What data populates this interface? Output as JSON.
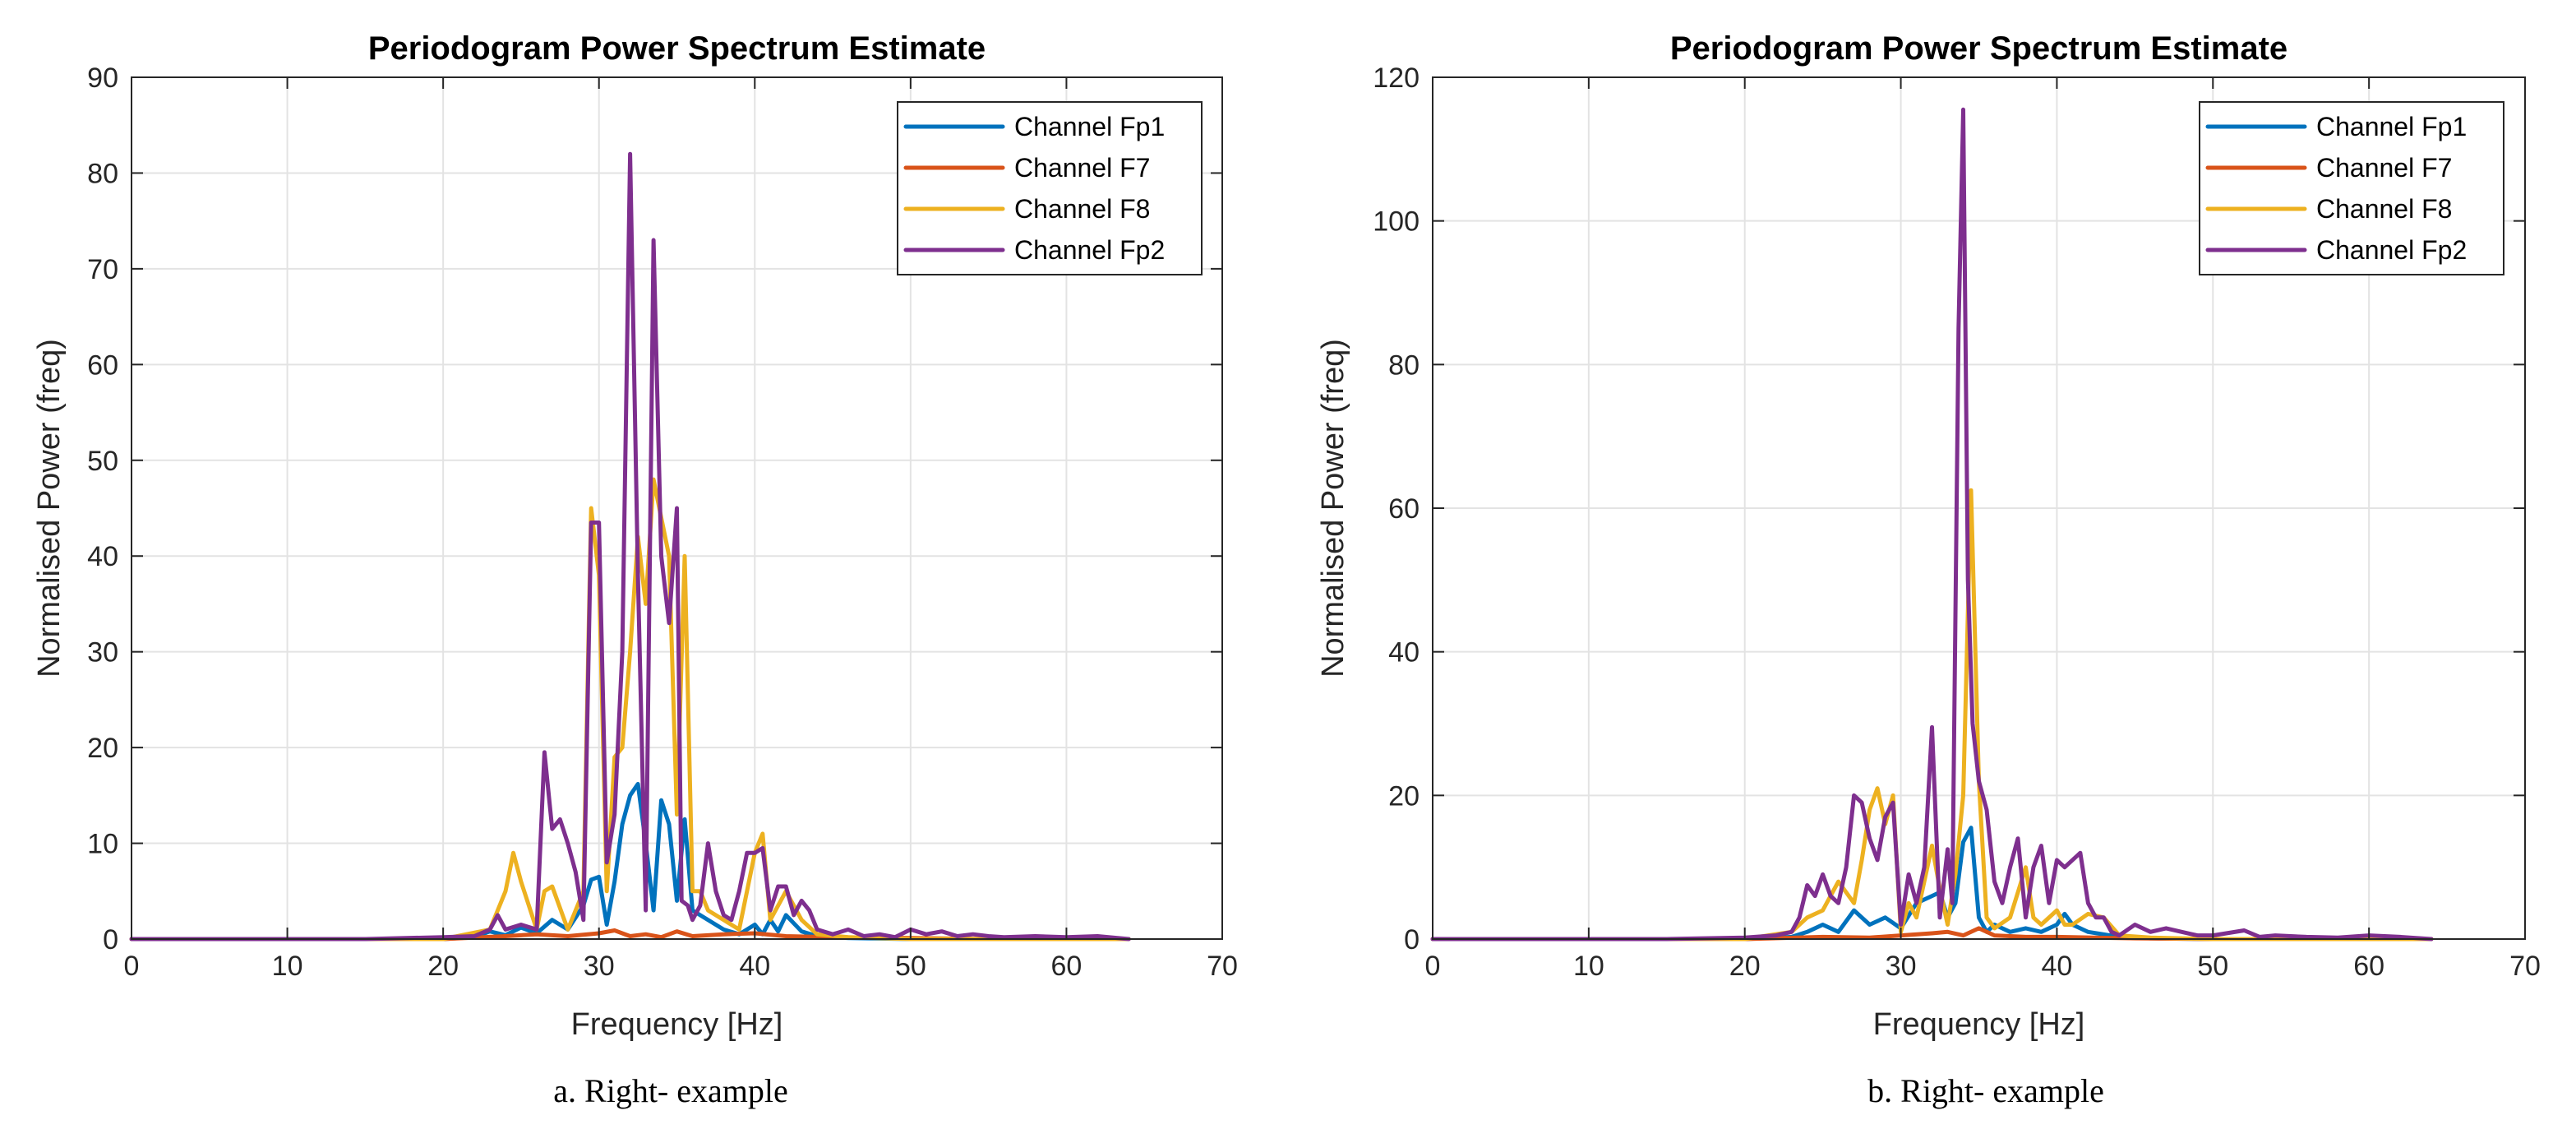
{
  "chart_data": [
    {
      "type": "line",
      "title": "Periodogram Power Spectrum Estimate",
      "xlabel": "Frequency [Hz]",
      "ylabel": "Normalised Power (freq)",
      "xlim": [
        0,
        70
      ],
      "ylim": [
        0,
        90
      ],
      "xticks": [
        0,
        10,
        20,
        30,
        40,
        50,
        60,
        70
      ],
      "yticks": [
        0,
        10,
        20,
        30,
        40,
        50,
        60,
        70,
        80,
        90
      ],
      "grid": true,
      "legend_position": "top-right",
      "caption": "a. Right- example",
      "series": [
        {
          "name": "Channel Fp1",
          "color": "#0072BD",
          "x": [
            0,
            5,
            10,
            15,
            20,
            22,
            23,
            24,
            25,
            26,
            27,
            28,
            29,
            29.5,
            30,
            30.5,
            31,
            31.5,
            32,
            32.5,
            33,
            33.5,
            34,
            34.5,
            35,
            35.5,
            36,
            37,
            38,
            39,
            40,
            40.5,
            41,
            41.5,
            42,
            43,
            44,
            46,
            50,
            55,
            60,
            64
          ],
          "y": [
            0,
            0,
            0,
            0,
            0,
            0.2,
            0.8,
            0.4,
            1.2,
            0.6,
            2,
            1,
            3.5,
            6.2,
            6.5,
            1.5,
            6,
            12,
            15,
            16.2,
            10,
            3,
            14.5,
            12,
            4,
            12.5,
            3,
            2,
            1,
            0.5,
            1.5,
            0.5,
            2,
            0.8,
            2.5,
            0.8,
            0.3,
            0.1,
            0,
            0,
            0,
            0
          ]
        },
        {
          "name": "Channel F7",
          "color": "#D95319",
          "x": [
            0,
            10,
            20,
            24,
            26,
            28,
            30,
            31,
            32,
            33,
            34,
            35,
            36,
            38,
            40,
            42,
            45,
            50,
            55,
            60,
            64
          ],
          "y": [
            0,
            0,
            0,
            0.3,
            0.5,
            0.3,
            0.6,
            0.9,
            0.3,
            0.5,
            0.2,
            0.8,
            0.3,
            0.5,
            0.6,
            0.3,
            0.2,
            0.1,
            0,
            0,
            0
          ]
        },
        {
          "name": "Channel F8",
          "color": "#EDB120",
          "x": [
            0,
            10,
            20,
            23,
            24,
            24.5,
            25,
            26,
            26.5,
            27,
            28,
            29,
            29.5,
            30,
            30.5,
            31,
            31.5,
            32,
            32.5,
            33,
            33.5,
            34,
            34.5,
            35,
            35.5,
            36,
            36.5,
            37,
            38,
            39,
            40,
            40.5,
            41,
            42,
            43,
            44,
            46,
            50,
            55,
            60,
            64
          ],
          "y": [
            0,
            0,
            0,
            1,
            5,
            9,
            6,
            1,
            5,
            5.5,
            1,
            5,
            45,
            38,
            5,
            19,
            20,
            30,
            42,
            35,
            48,
            44,
            40,
            13,
            40,
            5,
            5,
            3,
            2,
            1,
            9,
            11,
            2,
            5,
            2,
            0.5,
            0.2,
            0,
            0,
            0,
            0
          ]
        },
        {
          "name": "Channel Fp2",
          "color": "#7E2F8E",
          "x": [
            0,
            5,
            10,
            15,
            20,
            22,
            23,
            23.5,
            24,
            25,
            26,
            26.5,
            27,
            27.5,
            28,
            28.5,
            29,
            29.5,
            30,
            30.5,
            31,
            31.5,
            32,
            32.5,
            33,
            33.5,
            34,
            34.5,
            35,
            35.3,
            35.7,
            36,
            36.5,
            37,
            37.5,
            38,
            38.5,
            39,
            39.5,
            40,
            40.5,
            41,
            41.5,
            42,
            42.5,
            43,
            43.5,
            44,
            45,
            46,
            47,
            48,
            49,
            50,
            51,
            52,
            53,
            54,
            55,
            56,
            58,
            60,
            62,
            64
          ],
          "y": [
            0,
            0,
            0,
            0,
            0.2,
            0.3,
            1,
            2.5,
            1,
            1.5,
            1,
            19.5,
            11.5,
            12.5,
            10,
            7,
            2,
            43.5,
            43.5,
            8,
            13,
            30,
            82,
            38,
            3,
            73,
            40,
            33,
            45,
            4,
            3.5,
            2,
            3.5,
            10,
            5,
            2.5,
            2,
            5,
            9,
            9,
            9.5,
            3,
            5.5,
            5.5,
            2.5,
            4,
            3,
            1,
            0.5,
            1,
            0.3,
            0.5,
            0.2,
            1,
            0.5,
            0.8,
            0.3,
            0.5,
            0.3,
            0.2,
            0.3,
            0.2,
            0.3,
            0
          ]
        }
      ]
    },
    {
      "type": "line",
      "title": "Periodogram Power Spectrum Estimate",
      "xlabel": "Frequency [Hz]",
      "ylabel": "Normalised Power (freq)",
      "xlim": [
        0,
        70
      ],
      "ylim": [
        0,
        120
      ],
      "xticks": [
        0,
        10,
        20,
        30,
        40,
        50,
        60,
        70
      ],
      "yticks": [
        0,
        20,
        40,
        60,
        80,
        100,
        120
      ],
      "grid": true,
      "legend_position": "top-right",
      "caption": "b. Right- example",
      "series": [
        {
          "name": "Channel Fp1",
          "color": "#0072BD",
          "x": [
            0,
            10,
            20,
            23,
            24,
            25,
            26,
            27,
            28,
            29,
            30,
            31,
            32,
            32.5,
            33,
            33.5,
            34,
            34.5,
            35,
            35.5,
            36,
            37,
            38,
            39,
            40,
            40.5,
            41,
            42,
            44,
            46,
            50,
            55,
            60,
            64
          ],
          "y": [
            0,
            0,
            0,
            0.3,
            1,
            2,
            1,
            4,
            2,
            3,
            1.5,
            5,
            6,
            6.5,
            3,
            5,
            13.5,
            15.5,
            3,
            1,
            2,
            1,
            1.5,
            1,
            2,
            3.5,
            2,
            1,
            0.3,
            0.1,
            0,
            0,
            0,
            0
          ]
        },
        {
          "name": "Channel F7",
          "color": "#D95319",
          "x": [
            0,
            10,
            20,
            25,
            28,
            30,
            32,
            33,
            34,
            35,
            36,
            38,
            40,
            45,
            50,
            55,
            60,
            64
          ],
          "y": [
            0,
            0,
            0,
            0.3,
            0.2,
            0.5,
            0.8,
            1,
            0.5,
            1.5,
            0.5,
            0.3,
            0.3,
            0.1,
            0,
            0,
            0,
            0
          ]
        },
        {
          "name": "Channel F8",
          "color": "#EDB120",
          "x": [
            0,
            10,
            20,
            23,
            24,
            25,
            26,
            27,
            27.5,
            28,
            28.5,
            29,
            29.5,
            30,
            30.5,
            31,
            31.5,
            32,
            32.5,
            33,
            33.5,
            34,
            34.5,
            35,
            35.5,
            36,
            37,
            38,
            38.5,
            39,
            40,
            40.5,
            41,
            42,
            43,
            44,
            46,
            50,
            55,
            60,
            64
          ],
          "y": [
            0,
            0,
            0,
            1,
            3,
            4,
            8,
            5,
            11,
            18,
            21,
            16,
            20,
            1,
            5,
            3,
            8,
            13,
            7,
            2,
            9,
            20,
            62.5,
            22,
            3,
            1.5,
            3,
            10,
            3,
            2,
            4,
            2,
            2,
            3.5,
            3,
            0.5,
            0.2,
            0,
            0,
            0,
            0
          ]
        },
        {
          "name": "Channel Fp2",
          "color": "#7E2F8E",
          "x": [
            0,
            5,
            10,
            15,
            20,
            22,
            23,
            23.5,
            24,
            24.5,
            25,
            25.5,
            26,
            26.5,
            27,
            27.5,
            28,
            28.5,
            29,
            29.5,
            30,
            30.5,
            31,
            31.5,
            32,
            32.5,
            33,
            33.3,
            33.7,
            34,
            34.3,
            34.6,
            35,
            35.5,
            36,
            36.5,
            37,
            37.5,
            38,
            38.5,
            39,
            39.5,
            40,
            40.5,
            41,
            41.5,
            42,
            42.5,
            43,
            43.5,
            44,
            45,
            46,
            47,
            48,
            49,
            50,
            52,
            53,
            54,
            56,
            58,
            60,
            62,
            64
          ],
          "y": [
            0,
            0,
            0,
            0,
            0.2,
            0.5,
            1,
            3,
            7.5,
            6,
            9,
            6,
            5,
            10,
            20,
            19,
            14,
            11,
            17,
            19,
            2,
            9,
            5,
            10,
            29.5,
            3,
            12.5,
            5,
            85,
            115.5,
            50,
            30,
            22,
            18,
            8,
            5,
            10,
            14,
            3,
            10,
            13,
            5,
            11,
            10,
            11,
            12,
            5,
            3,
            3,
            1,
            0.5,
            2,
            1,
            1.5,
            1,
            0.5,
            0.5,
            1.2,
            0.3,
            0.5,
            0.3,
            0.2,
            0.5,
            0.3,
            0
          ]
        }
      ]
    }
  ]
}
